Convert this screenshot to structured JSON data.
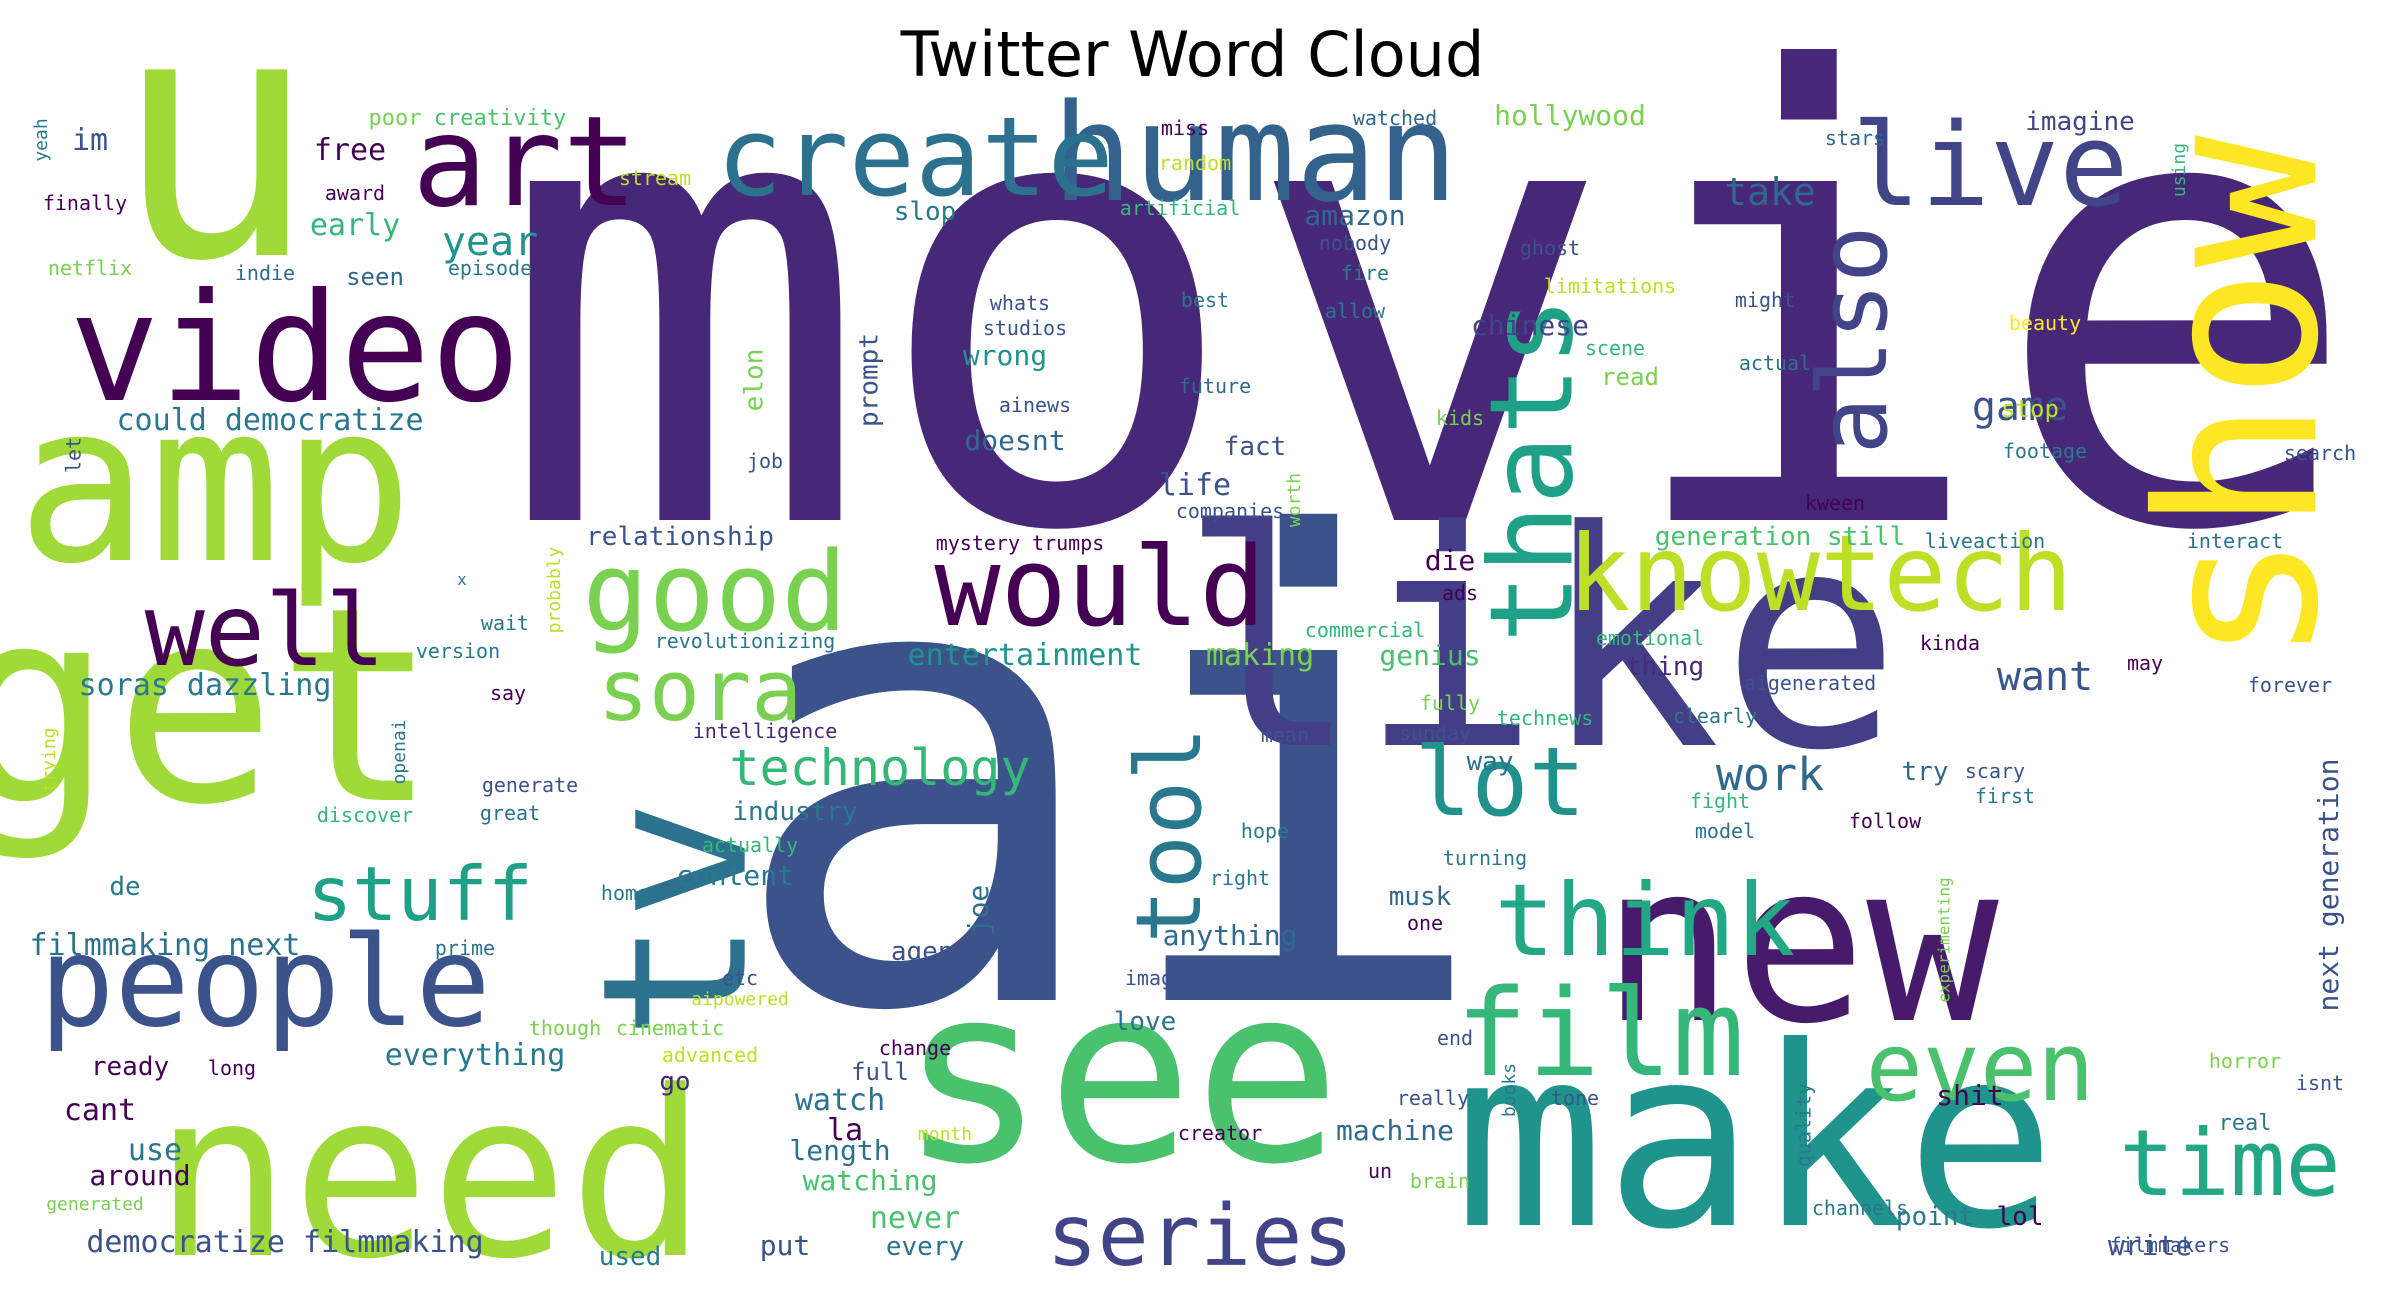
{
  "chart_data": {
    "type": "wordcloud",
    "title": "Twitter Word Cloud",
    "colormap": "viridis",
    "words": [
      {
        "text": "movie",
        "weight": 100,
        "color": "#472777"
      },
      {
        "text": "ai",
        "weight": 95,
        "color": "#3b528b"
      },
      {
        "text": "u",
        "weight": 60,
        "color": "#a0da39"
      },
      {
        "text": "like",
        "weight": 55,
        "color": "#433e85"
      },
      {
        "text": "make",
        "weight": 50,
        "color": "#1f948c"
      },
      {
        "text": "new",
        "weight": 48,
        "color": "#481a6c"
      },
      {
        "text": "get",
        "weight": 47,
        "color": "#a0da39"
      },
      {
        "text": "need",
        "weight": 46,
        "color": "#a0da39"
      },
      {
        "text": "see",
        "weight": 45,
        "color": "#4ac16d"
      },
      {
        "text": "show",
        "weight": 44,
        "color": "#fde725"
      },
      {
        "text": "amp",
        "weight": 42,
        "color": "#a0da39"
      },
      {
        "text": "tv",
        "weight": 40,
        "color": "#2c728e"
      },
      {
        "text": "video",
        "weight": 38,
        "color": "#440154"
      },
      {
        "text": "human",
        "weight": 35,
        "color": "#33638d"
      },
      {
        "text": "people",
        "weight": 34,
        "color": "#3b528b"
      },
      {
        "text": "create",
        "weight": 32,
        "color": "#2c728e"
      },
      {
        "text": "art",
        "weight": 31,
        "color": "#440154"
      },
      {
        "text": "live",
        "weight": 30,
        "color": "#414487"
      },
      {
        "text": "film",
        "weight": 29,
        "color": "#35b779"
      },
      {
        "text": "thats",
        "weight": 28,
        "color": "#1fa187"
      },
      {
        "text": "good",
        "weight": 28,
        "color": "#7ad151"
      },
      {
        "text": "would",
        "weight": 27,
        "color": "#440154"
      },
      {
        "text": "knowtech",
        "weight": 27,
        "color": "#bddf26"
      },
      {
        "text": "well",
        "weight": 26,
        "color": "#440154"
      },
      {
        "text": "also",
        "weight": 25,
        "color": "#414487"
      },
      {
        "text": "lot",
        "weight": 25,
        "color": "#21918c"
      },
      {
        "text": "think",
        "weight": 24,
        "color": "#22a884"
      },
      {
        "text": "tool",
        "weight": 24,
        "color": "#2a788e"
      },
      {
        "text": "time",
        "weight": 23,
        "color": "#22a884"
      },
      {
        "text": "even",
        "weight": 23,
        "color": "#4ac16d"
      },
      {
        "text": "series",
        "weight": 22,
        "color": "#414487"
      },
      {
        "text": "sora",
        "weight": 22,
        "color": "#7ad151"
      },
      {
        "text": "stuff",
        "weight": 20,
        "color": "#1fa187"
      },
      {
        "text": "technology",
        "weight": 14,
        "color": "#35b779"
      },
      {
        "text": "work",
        "weight": 13,
        "color": "#31688e"
      },
      {
        "text": "game",
        "weight": 12,
        "color": "#3b528b"
      },
      {
        "text": "want",
        "weight": 12,
        "color": "#39568c"
      },
      {
        "text": "take",
        "weight": 12,
        "color": "#31688e"
      },
      {
        "text": "year",
        "weight": 12,
        "color": "#1f948c"
      },
      {
        "text": "soras dazzling",
        "weight": 11,
        "color": "#2a788e"
      },
      {
        "text": "entertainment",
        "weight": 11,
        "color": "#1f948c"
      },
      {
        "text": "filmmaking next",
        "weight": 11,
        "color": "#2c728e"
      },
      {
        "text": "could democratize",
        "weight": 11,
        "color": "#2a788e"
      },
      {
        "text": "democratize filmmaking",
        "weight": 11,
        "color": "#3b528b"
      },
      {
        "text": "everything",
        "weight": 11,
        "color": "#2a788e"
      },
      {
        "text": "next generation",
        "weight": 11,
        "color": "#3b528b"
      },
      {
        "text": "relationship",
        "weight": 10,
        "color": "#39568c"
      },
      {
        "text": "generation still",
        "weight": 10,
        "color": "#4ac16d"
      },
      {
        "text": "industry",
        "weight": 10,
        "color": "#2a788e"
      },
      {
        "text": "content",
        "weight": 10,
        "color": "#2a788e"
      },
      {
        "text": "anything",
        "weight": 10,
        "color": "#31688e"
      },
      {
        "text": "watching",
        "weight": 10,
        "color": "#4ac16d"
      },
      {
        "text": "machine",
        "weight": 10,
        "color": "#31688e"
      },
      {
        "text": "watch",
        "weight": 10,
        "color": "#2c728e"
      },
      {
        "text": "length",
        "weight": 10,
        "color": "#2c728e"
      },
      {
        "text": "never",
        "weight": 10,
        "color": "#4ac16d"
      },
      {
        "text": "making",
        "weight": 10,
        "color": "#7ad151"
      },
      {
        "text": "genius",
        "weight": 10,
        "color": "#4ac16d"
      },
      {
        "text": "shit",
        "weight": 10,
        "color": "#440154"
      },
      {
        "text": "chinese",
        "weight": 9,
        "color": "#414487"
      },
      {
        "text": "free",
        "weight": 9,
        "color": "#440154"
      },
      {
        "text": "early",
        "weight": 9,
        "color": "#35b779"
      },
      {
        "text": "amazon",
        "weight": 9,
        "color": "#31688e"
      },
      {
        "text": "seen",
        "weight": 8,
        "color": "#31688e"
      },
      {
        "text": "im",
        "weight": 8,
        "color": "#3b528b"
      },
      {
        "text": "hollywood",
        "weight": 8,
        "color": "#7ad151"
      },
      {
        "text": "imagine",
        "weight": 8,
        "color": "#414487"
      },
      {
        "text": "life",
        "weight": 9,
        "color": "#3b528b"
      },
      {
        "text": "fact",
        "weight": 9,
        "color": "#3b528b"
      },
      {
        "text": "die",
        "weight": 9,
        "color": "#440154"
      },
      {
        "text": "cant",
        "weight": 9,
        "color": "#440154"
      },
      {
        "text": "use",
        "weight": 9,
        "color": "#2a788e"
      },
      {
        "text": "around",
        "weight": 9,
        "color": "#440154"
      },
      {
        "text": "put",
        "weight": 9,
        "color": "#3b528b"
      },
      {
        "text": "la",
        "weight": 9,
        "color": "#440154"
      },
      {
        "text": "love",
        "weight": 8,
        "color": "#2c728e"
      },
      {
        "text": "read",
        "weight": 8,
        "color": "#7ad151"
      },
      {
        "text": "wrong",
        "weight": 8,
        "color": "#1f948c"
      },
      {
        "text": "doesnt",
        "weight": 8,
        "color": "#31688e"
      },
      {
        "text": "prompt",
        "weight": 8,
        "color": "#3b528b"
      },
      {
        "text": "elon",
        "weight": 8,
        "color": "#7ad151"
      },
      {
        "text": "joe",
        "weight": 8,
        "color": "#2c728e"
      },
      {
        "text": "agent",
        "weight": 8,
        "color": "#3b528b"
      },
      {
        "text": "point",
        "weight": 8,
        "color": "#2a788e"
      },
      {
        "text": "lol",
        "weight": 8,
        "color": "#440154"
      },
      {
        "text": "write",
        "weight": 8,
        "color": "#3b528b"
      },
      {
        "text": "thing",
        "weight": 8,
        "color": "#482878"
      },
      {
        "text": "way",
        "weight": 8,
        "color": "#2c728e"
      },
      {
        "text": "try",
        "weight": 8,
        "color": "#31688e"
      },
      {
        "text": "musk",
        "weight": 8,
        "color": "#31688e"
      },
      {
        "text": "ready",
        "weight": 8,
        "color": "#440154"
      },
      {
        "text": "de",
        "weight": 7,
        "color": "#2a788e"
      },
      {
        "text": "go",
        "weight": 8,
        "color": "#482878"
      },
      {
        "text": "full",
        "weight": 7,
        "color": "#3b528b"
      },
      {
        "text": "every",
        "weight": 7,
        "color": "#2c728e"
      },
      {
        "text": "used",
        "weight": 7,
        "color": "#2a788e"
      },
      {
        "text": "creativity",
        "weight": 6,
        "color": "#4ac16d"
      },
      {
        "text": "poor",
        "weight": 6,
        "color": "#7ad151"
      },
      {
        "text": "yeah",
        "weight": 6,
        "color": "#2a788e"
      },
      {
        "text": "finally",
        "weight": 6,
        "color": "#440154"
      },
      {
        "text": "award",
        "weight": 6,
        "color": "#440154"
      },
      {
        "text": "stream",
        "weight": 6,
        "color": "#bddf26"
      },
      {
        "text": "netflix",
        "weight": 6,
        "color": "#7ad151"
      },
      {
        "text": "indie",
        "weight": 6,
        "color": "#31688e"
      },
      {
        "text": "episode",
        "weight": 6,
        "color": "#2a788e"
      },
      {
        "text": "miss",
        "weight": 6,
        "color": "#440154"
      },
      {
        "text": "random",
        "weight": 6,
        "color": "#bddf26"
      },
      {
        "text": "artificial",
        "weight": 6,
        "color": "#35b779"
      },
      {
        "text": "slop",
        "weight": 7,
        "color": "#2a788e"
      },
      {
        "text": "watched",
        "weight": 6,
        "color": "#31688e"
      },
      {
        "text": "stars",
        "weight": 6,
        "color": "#31688e"
      },
      {
        "text": "using",
        "weight": 6,
        "color": "#35b779"
      },
      {
        "text": "nobody",
        "weight": 6,
        "color": "#3b528b"
      },
      {
        "text": "ghost",
        "weight": 6,
        "color": "#3b528b"
      },
      {
        "text": "fire",
        "weight": 6,
        "color": "#2a788e"
      },
      {
        "text": "limitations",
        "weight": 6,
        "color": "#bddf26"
      },
      {
        "text": "beauty",
        "weight": 6,
        "color": "#fde725"
      },
      {
        "text": "whats",
        "weight": 6,
        "color": "#3b528b"
      },
      {
        "text": "studios",
        "weight": 6,
        "color": "#3b528b"
      },
      {
        "text": "best",
        "weight": 6,
        "color": "#2a788e"
      },
      {
        "text": "allow",
        "weight": 6,
        "color": "#2a788e"
      },
      {
        "text": "might",
        "weight": 6,
        "color": "#3b528b"
      },
      {
        "text": "scene",
        "weight": 6,
        "color": "#35b779"
      },
      {
        "text": "actual",
        "weight": 6,
        "color": "#2c728e"
      },
      {
        "text": "future",
        "weight": 6,
        "color": "#31688e"
      },
      {
        "text": "ainews",
        "weight": 6,
        "color": "#3b528b"
      },
      {
        "text": "kids",
        "weight": 6,
        "color": "#7ad151"
      },
      {
        "text": "stop",
        "weight": 6,
        "color": "#bddf26"
      },
      {
        "text": "footage",
        "weight": 6,
        "color": "#2a788e"
      },
      {
        "text": "search",
        "weight": 6,
        "color": "#3b528b"
      },
      {
        "text": "let",
        "weight": 6,
        "color": "#3b528b"
      },
      {
        "text": "job",
        "weight": 6,
        "color": "#3b528b"
      },
      {
        "text": "worth",
        "weight": 6,
        "color": "#7ad151"
      },
      {
        "text": "kween",
        "weight": 6,
        "color": "#440154"
      },
      {
        "text": "companies",
        "weight": 6,
        "color": "#3b528b"
      },
      {
        "text": "mystery trumps",
        "weight": 6,
        "color": "#440154"
      },
      {
        "text": "liveaction",
        "weight": 6,
        "color": "#2a788e"
      },
      {
        "text": "interact",
        "weight": 6,
        "color": "#2c728e"
      },
      {
        "text": "probably",
        "weight": 6,
        "color": "#bddf26"
      },
      {
        "text": "x",
        "weight": 5,
        "color": "#2a788e"
      },
      {
        "text": "ads",
        "weight": 6,
        "color": "#440154"
      },
      {
        "text": "commercial",
        "weight": 6,
        "color": "#35b779"
      },
      {
        "text": "emotional",
        "weight": 6,
        "color": "#35b779"
      },
      {
        "text": "kinda",
        "weight": 6,
        "color": "#440154"
      },
      {
        "text": "wait",
        "weight": 6,
        "color": "#2a788e"
      },
      {
        "text": "version",
        "weight": 6,
        "color": "#2a788e"
      },
      {
        "text": "revolutionizing",
        "weight": 6,
        "color": "#2a788e"
      },
      {
        "text": "aigenerated",
        "weight": 6,
        "color": "#3b528b"
      },
      {
        "text": "may",
        "weight": 6,
        "color": "#440154"
      },
      {
        "text": "forever",
        "weight": 6,
        "color": "#3b528b"
      },
      {
        "text": "say",
        "weight": 6,
        "color": "#440154"
      },
      {
        "text": "intelligence",
        "weight": 6,
        "color": "#482878"
      },
      {
        "text": "fully",
        "weight": 6,
        "color": "#7ad151"
      },
      {
        "text": "technews",
        "weight": 6,
        "color": "#35b779"
      },
      {
        "text": "clearly",
        "weight": 6,
        "color": "#2a788e"
      },
      {
        "text": "trying",
        "weight": 6,
        "color": "#bddf26"
      },
      {
        "text": "openai",
        "weight": 6,
        "color": "#2a788e"
      },
      {
        "text": "mean",
        "weight": 6,
        "color": "#3b528b"
      },
      {
        "text": "sunday",
        "weight": 6,
        "color": "#3b528b"
      },
      {
        "text": "generate",
        "weight": 6,
        "color": "#3b528b"
      },
      {
        "text": "fight",
        "weight": 6,
        "color": "#35b779"
      },
      {
        "text": "scary",
        "weight": 6,
        "color": "#3b528b"
      },
      {
        "text": "first",
        "weight": 6,
        "color": "#2a788e"
      },
      {
        "text": "discover",
        "weight": 6,
        "color": "#35b779"
      },
      {
        "text": "great",
        "weight": 6,
        "color": "#2c728e"
      },
      {
        "text": "hope",
        "weight": 6,
        "color": "#2a788e"
      },
      {
        "text": "turning",
        "weight": 6,
        "color": "#2a788e"
      },
      {
        "text": "follow",
        "weight": 6,
        "color": "#440154"
      },
      {
        "text": "model",
        "weight": 6,
        "color": "#2c728e"
      },
      {
        "text": "actually",
        "weight": 6,
        "color": "#35b779"
      },
      {
        "text": "home",
        "weight": 6,
        "color": "#2a788e"
      },
      {
        "text": "right",
        "weight": 6,
        "color": "#2a788e"
      },
      {
        "text": "experimenting",
        "weight": 5,
        "color": "#7ad151"
      },
      {
        "text": "one",
        "weight": 6,
        "color": "#440154"
      },
      {
        "text": "prime",
        "weight": 6,
        "color": "#2c728e"
      },
      {
        "text": "etc",
        "weight": 6,
        "color": "#3b528b"
      },
      {
        "text": "image",
        "weight": 6,
        "color": "#3b528b"
      },
      {
        "text": "aipowered",
        "weight": 6,
        "color": "#bddf26"
      },
      {
        "text": "though",
        "weight": 6,
        "color": "#7ad151"
      },
      {
        "text": "cinematic",
        "weight": 6,
        "color": "#7ad151"
      },
      {
        "text": "long",
        "weight": 6,
        "color": "#440154"
      },
      {
        "text": "advanced",
        "weight": 6,
        "color": "#bddf26"
      },
      {
        "text": "change",
        "weight": 6,
        "color": "#440154"
      },
      {
        "text": "end",
        "weight": 6,
        "color": "#3b528b"
      },
      {
        "text": "books",
        "weight": 6,
        "color": "#2a788e"
      },
      {
        "text": "horror",
        "weight": 6,
        "color": "#7ad151"
      },
      {
        "text": "isnt",
        "weight": 6,
        "color": "#3b528b"
      },
      {
        "text": "really",
        "weight": 6,
        "color": "#3b528b"
      },
      {
        "text": "tone",
        "weight": 6,
        "color": "#3b528b"
      },
      {
        "text": "quality",
        "weight": 6,
        "color": "#2a788e"
      },
      {
        "text": "real",
        "weight": 6,
        "color": "#2a788e"
      },
      {
        "text": "creator",
        "weight": 6,
        "color": "#440154"
      },
      {
        "text": "month",
        "weight": 6,
        "color": "#bddf26"
      },
      {
        "text": "un",
        "weight": 6,
        "color": "#440154"
      },
      {
        "text": "brain",
        "weight": 6,
        "color": "#7ad151"
      },
      {
        "text": "generated",
        "weight": 6,
        "color": "#7ad151"
      },
      {
        "text": "channels",
        "weight": 6,
        "color": "#2a788e"
      },
      {
        "text": "filmmakers",
        "weight": 6,
        "color": "#3b528b"
      }
    ]
  }
}
